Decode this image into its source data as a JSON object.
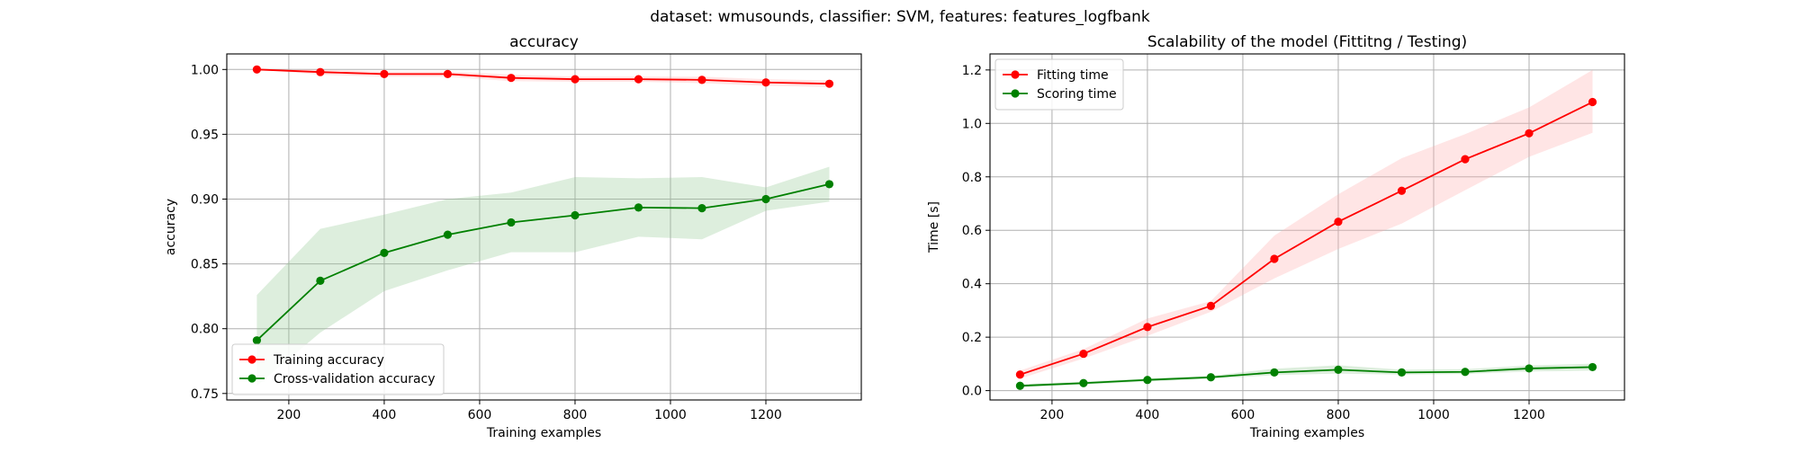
{
  "figure": {
    "suptitle": "dataset: wmusounds, classifier: SVM, features: features_logfbank"
  },
  "chart_data": [
    {
      "type": "line",
      "title": "accuracy",
      "xlabel": "Training examples",
      "ylabel": "accuracy",
      "xlim": [
        70,
        1400
      ],
      "ylim": [
        0.745,
        1.012
      ],
      "xticks": [
        200,
        400,
        600,
        800,
        1000,
        1200
      ],
      "xtick_labels": [
        "200",
        "400",
        "600",
        "800",
        "1000",
        "1200"
      ],
      "yticks": [
        0.75,
        0.8,
        0.85,
        0.9,
        0.95,
        1.0
      ],
      "ytick_labels": [
        "0.75",
        "0.80",
        "0.85",
        "0.90",
        "0.95",
        "1.00"
      ],
      "grid": true,
      "legend_position": "lower-left",
      "x": [
        133,
        266,
        400,
        533,
        666,
        800,
        933,
        1066,
        1200,
        1333
      ],
      "series": [
        {
          "name": "Training accuracy",
          "color": "#ff0000",
          "band_color": "#ffaaaa",
          "values": [
            1.0,
            0.998,
            0.9965,
            0.9965,
            0.9935,
            0.9925,
            0.9925,
            0.992,
            0.99,
            0.989
          ],
          "lower": [
            1.0,
            0.996,
            0.9945,
            0.9945,
            0.991,
            0.9905,
            0.9905,
            0.9895,
            0.9875,
            0.9865
          ],
          "upper": [
            1.0,
            1.0,
            0.9985,
            0.9985,
            0.996,
            0.9945,
            0.9945,
            0.9945,
            0.9925,
            0.9915
          ]
        },
        {
          "name": "Cross-validation accuracy",
          "color": "#008000",
          "band_color": "#90c890",
          "values": [
            0.791,
            0.837,
            0.8585,
            0.8725,
            0.882,
            0.8875,
            0.8935,
            0.893,
            0.9,
            0.9115
          ],
          "lower": [
            0.756,
            0.797,
            0.829,
            0.845,
            0.859,
            0.859,
            0.871,
            0.869,
            0.891,
            0.898
          ],
          "upper": [
            0.826,
            0.877,
            0.888,
            0.9,
            0.905,
            0.917,
            0.916,
            0.917,
            0.909,
            0.925
          ]
        }
      ]
    },
    {
      "type": "line",
      "title": "Scalability of the model (Fittitng / Testing)",
      "xlabel": "Training examples",
      "ylabel": "Time [s]",
      "xlim": [
        70,
        1400
      ],
      "ylim": [
        -0.035,
        1.26
      ],
      "xticks": [
        200,
        400,
        600,
        800,
        1000,
        1200
      ],
      "xtick_labels": [
        "200",
        "400",
        "600",
        "800",
        "1000",
        "1200"
      ],
      "yticks": [
        0.0,
        0.2,
        0.4,
        0.6,
        0.8,
        1.0,
        1.2
      ],
      "ytick_labels": [
        "0.0",
        "0.2",
        "0.4",
        "0.6",
        "0.8",
        "1.0",
        "1.2"
      ],
      "grid": true,
      "legend_position": "top-left",
      "x": [
        133,
        266,
        400,
        533,
        666,
        800,
        933,
        1066,
        1200,
        1333
      ],
      "series": [
        {
          "name": "Fitting time",
          "color": "#ff0000",
          "band_color": "#ffaaaa",
          "values": [
            0.06,
            0.138,
            0.238,
            0.317,
            0.493,
            0.632,
            0.748,
            0.866,
            0.963,
            1.08
          ],
          "lower": [
            0.045,
            0.12,
            0.205,
            0.295,
            0.42,
            0.53,
            0.625,
            0.75,
            0.875,
            0.965
          ],
          "upper": [
            0.075,
            0.155,
            0.27,
            0.335,
            0.58,
            0.735,
            0.87,
            0.96,
            1.06,
            1.2
          ]
        },
        {
          "name": "Scoring time",
          "color": "#008000",
          "band_color": "#90c890",
          "values": [
            0.018,
            0.028,
            0.04,
            0.05,
            0.068,
            0.078,
            0.068,
            0.07,
            0.083,
            0.088
          ],
          "lower": [
            0.012,
            0.022,
            0.034,
            0.044,
            0.058,
            0.064,
            0.06,
            0.062,
            0.072,
            0.075
          ],
          "upper": [
            0.024,
            0.034,
            0.046,
            0.056,
            0.082,
            0.095,
            0.078,
            0.08,
            0.094,
            0.101
          ]
        }
      ]
    }
  ]
}
